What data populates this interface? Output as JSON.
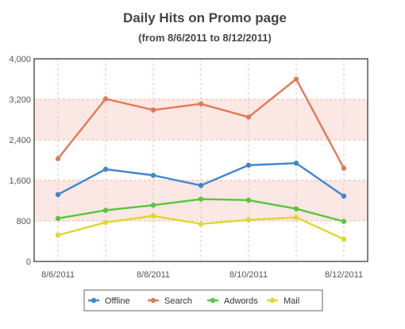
{
  "chart_data": {
    "type": "line",
    "title": "Daily Hits on Promo page",
    "subtitle": "(from 8/6/2011 to 8/12/2011)",
    "xlabel": "",
    "ylabel": "",
    "x": [
      "8/6/2011",
      "8/7/2011",
      "8/8/2011",
      "8/9/2011",
      "8/10/2011",
      "8/11/2011",
      "8/12/2011"
    ],
    "x_tick_labels": [
      "8/6/2011",
      "",
      "8/8/2011",
      "",
      "8/10/2011",
      "",
      "8/12/2011"
    ],
    "y_tick_labels": [
      "0",
      "800",
      "1,600",
      "2,400",
      "3,200",
      "4,000"
    ],
    "ylim": [
      0,
      4000
    ],
    "grid": true,
    "bands": [
      [
        800,
        1600
      ],
      [
        2400,
        3200
      ]
    ],
    "legend_position": "bottom",
    "series": [
      {
        "name": "Offline",
        "color": "#3f86d0",
        "values": [
          1320,
          1820,
          1700,
          1500,
          1900,
          1940,
          1290
        ]
      },
      {
        "name": "Search",
        "color": "#e07a58",
        "values": [
          2030,
          3210,
          2990,
          3110,
          2850,
          3600,
          1840
        ]
      },
      {
        "name": "Adwords",
        "color": "#55c83a",
        "values": [
          850,
          1010,
          1110,
          1230,
          1210,
          1040,
          790
        ]
      },
      {
        "name": "Mail",
        "color": "#dcd82c",
        "values": [
          520,
          770,
          900,
          740,
          820,
          870,
          440
        ]
      }
    ]
  }
}
